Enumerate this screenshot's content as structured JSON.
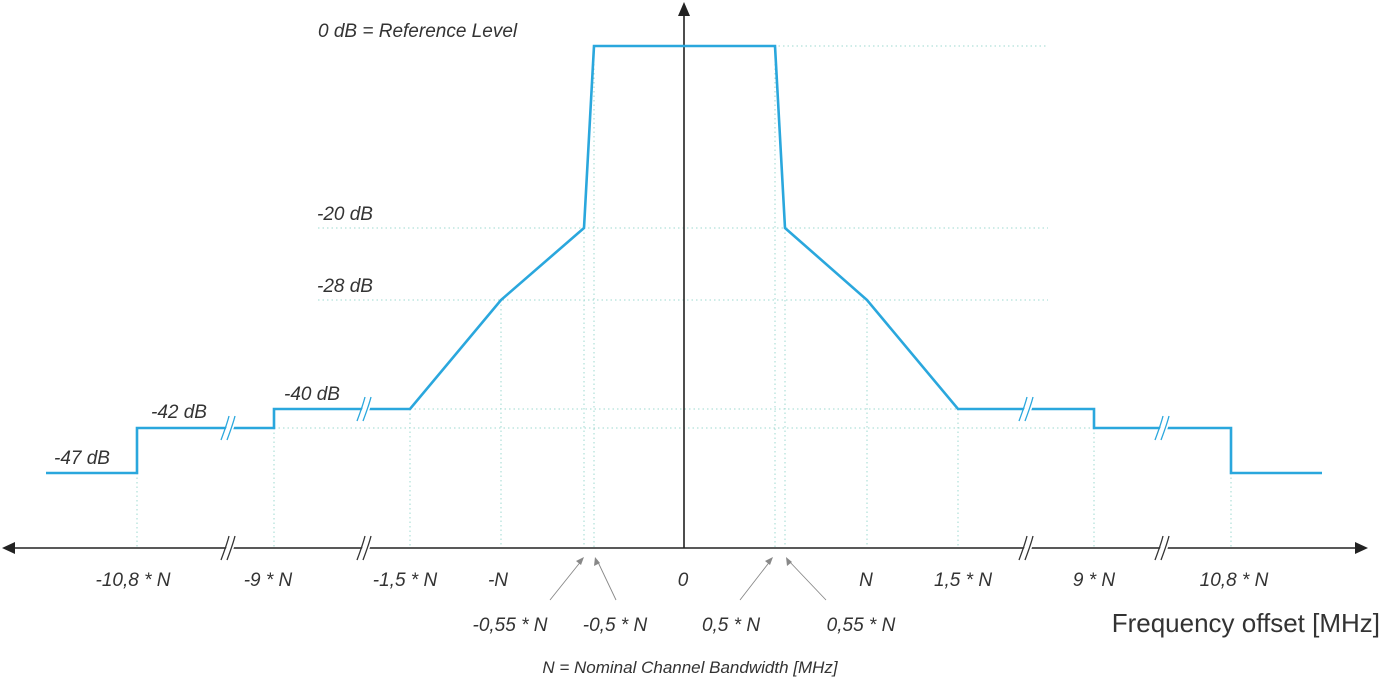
{
  "diagram": {
    "ref_level_label": "0 dB = Reference Level",
    "x_axis_title": "Frequency offset [MHz]",
    "footnote": "N = Nominal Channel Bandwidth [MHz]",
    "colors": {
      "mask": "#2aa7dd",
      "axis": "#222222",
      "grid": "#9ed9d0",
      "text": "#333333"
    },
    "level_labels": {
      "minus20": "-20 dB",
      "minus28": "-28 dB",
      "minus40": "-40 dB",
      "minus42": "-42 dB",
      "minus47": "-47 dB"
    },
    "x_labels": {
      "m10_8": "-10,8 * N",
      "m9": "-9 * N",
      "m1_5": "-1,5 * N",
      "mN": "-N",
      "m0_55": "-0,55 * N",
      "m0_5": "-0,5 * N",
      "zero": "0",
      "p0_5": "0,5 * N",
      "p0_55": "0,55 * N",
      "pN": "N",
      "p1_5": "1,5 * N",
      "p9": "9 * N",
      "p10_8": "10,8 * N"
    },
    "mask_points": [
      {
        "offset": "-10,8 * N",
        "level_db": -47
      },
      {
        "offset": "-9 * N",
        "level_db": -42
      },
      {
        "offset": "-1,5 * N",
        "level_db": -40
      },
      {
        "offset": "-N",
        "level_db": -28
      },
      {
        "offset": "-0,55 * N",
        "level_db": -20
      },
      {
        "offset": "-0,5 * N",
        "level_db": 0
      },
      {
        "offset": "0,5 * N",
        "level_db": 0
      },
      {
        "offset": "0,55 * N",
        "level_db": -20
      },
      {
        "offset": "N",
        "level_db": -28
      },
      {
        "offset": "1,5 * N",
        "level_db": -40
      },
      {
        "offset": "9 * N",
        "level_db": -42
      },
      {
        "offset": "10,8 * N",
        "level_db": -47
      }
    ]
  }
}
